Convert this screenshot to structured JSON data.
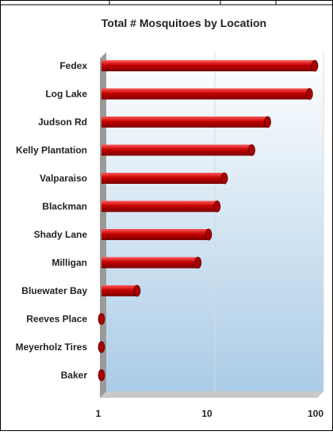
{
  "chart_data": {
    "type": "bar",
    "orientation": "horizontal",
    "x_scale": "log",
    "title": "Total # Mosquitoes by Location",
    "categories": [
      "Fedex",
      "Log Lake",
      "Judson Rd",
      "Kelly Plantation",
      "Valparaiso",
      "Blackman",
      "Shady Lane",
      "Milligan",
      "Bluewater Bay",
      "Reeves Place",
      "Meyerholz Tires",
      "Baker"
    ],
    "values": [
      95,
      85,
      35,
      25,
      14,
      12,
      10,
      8,
      2.2,
      1,
      1,
      1
    ],
    "xlim": [
      1,
      100
    ],
    "x_ticks": [
      "1",
      "10",
      "100"
    ],
    "grid": true,
    "colors": {
      "bar": "#c40000",
      "bar_dark": "#7a0000",
      "bar_light": "#ff5a5a",
      "wall_top": "#ffffff",
      "wall_bottom": "#a9cbe6"
    }
  }
}
